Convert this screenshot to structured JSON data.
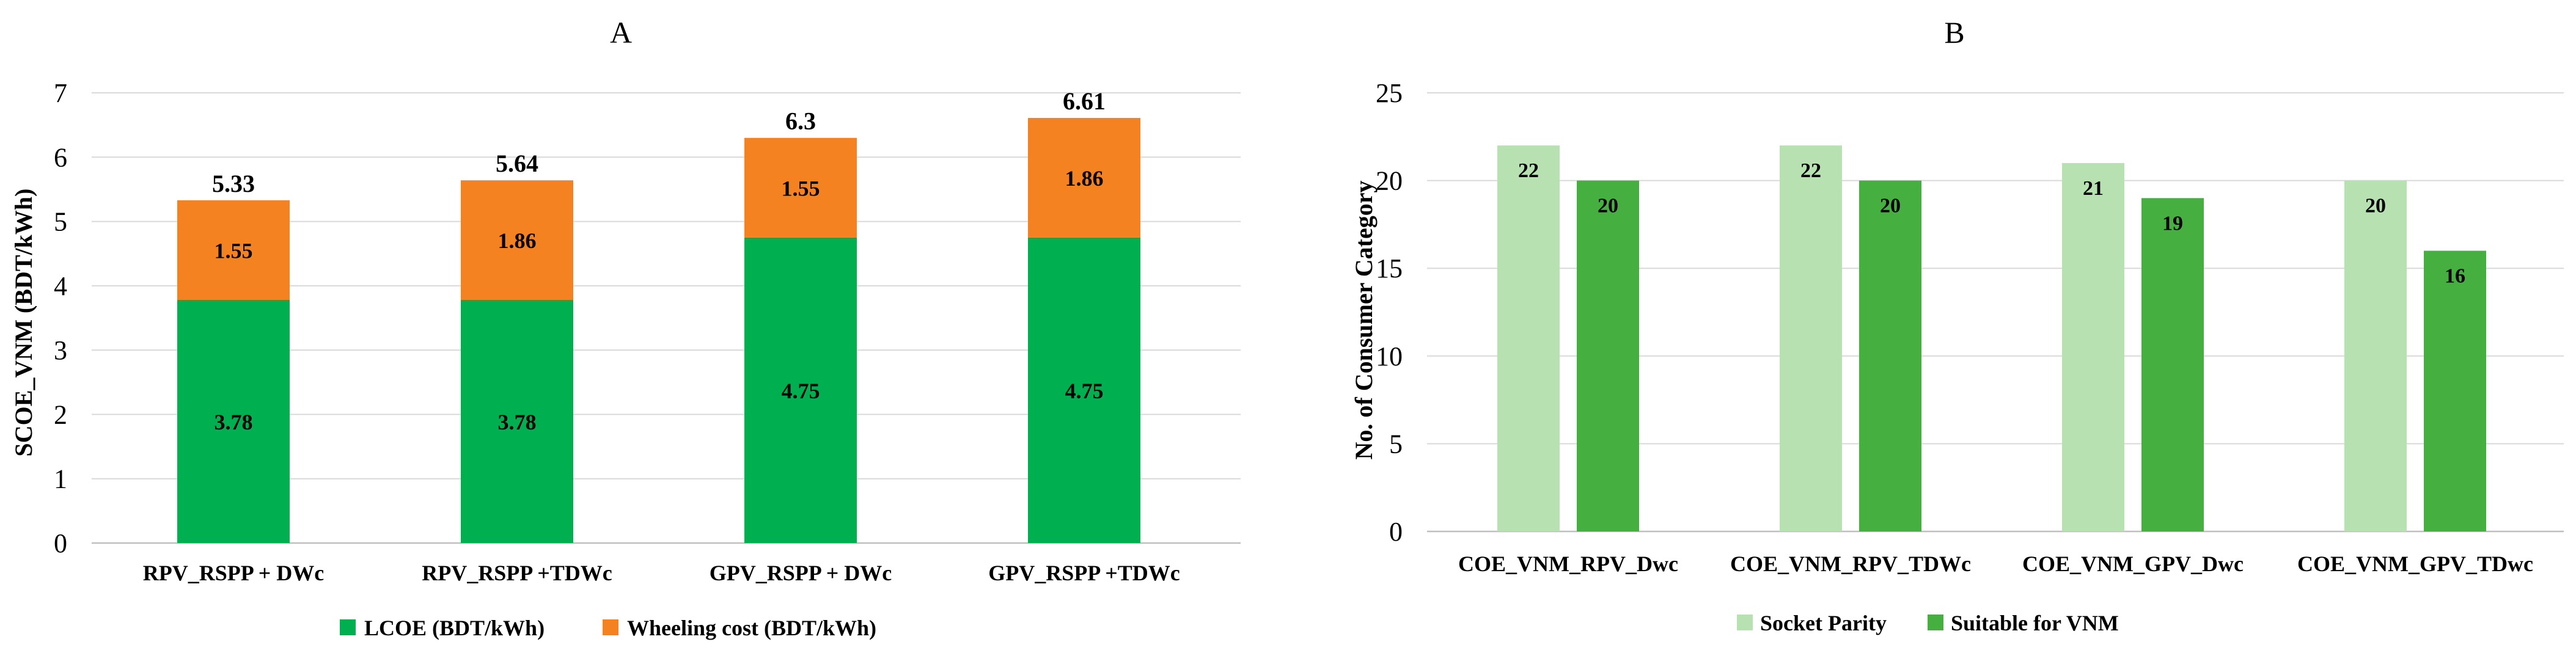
{
  "chart_data": [
    {
      "type": "bar",
      "stacked": true,
      "title": "A",
      "xlabel": "",
      "ylabel": "SCOE_VNM (BDT/kWh)",
      "ylim": [
        0,
        7
      ],
      "yticks": [
        "0",
        "1",
        "2",
        "3",
        "4",
        "5",
        "6",
        "7"
      ],
      "grid": true,
      "legend_position": "bottom",
      "categories": [
        "RPV_RSPP + DWc",
        "RPV_RSPP +TDWc",
        "GPV_RSPP + DWc",
        "GPV_RSPP +TDWc"
      ],
      "series": [
        {
          "name": "LCOE (BDT/kWh)",
          "color": "#00b050",
          "values": [
            3.78,
            3.78,
            4.75,
            4.75
          ],
          "labels": [
            "3.78",
            "3.78",
            "4.75",
            "4.75"
          ]
        },
        {
          "name": "Wheeling cost (BDT/kWh)",
          "color": "#f58220",
          "values": [
            1.55,
            1.86,
            1.55,
            1.86
          ],
          "labels": [
            "1.55",
            "1.86",
            "1.55",
            "1.86"
          ]
        }
      ],
      "totals": [
        5.33,
        5.64,
        6.3,
        6.61
      ],
      "total_labels": [
        "5.33",
        "5.64",
        "6.3",
        "6.61"
      ]
    },
    {
      "type": "bar",
      "stacked": false,
      "title": "B",
      "xlabel": "",
      "ylabel": "No. of Consumer Category",
      "ylim": [
        0,
        25
      ],
      "yticks": [
        "0",
        "5",
        "10",
        "15",
        "20",
        "25"
      ],
      "grid": true,
      "legend_position": "bottom",
      "categories": [
        "COE_VNM_RPV_Dwc",
        "COE_VNM_RPV_TDWc",
        "COE_VNM_GPV_Dwc",
        "COE_VNM_GPV_TDwc"
      ],
      "series": [
        {
          "name": "Socket Parity",
          "color": "#b7e1b0",
          "values": [
            22,
            22,
            21,
            20
          ],
          "labels": [
            "22",
            "22",
            "21",
            "20"
          ]
        },
        {
          "name": "Suitable for VNM",
          "color": "#45b03f",
          "values": [
            20,
            20,
            19,
            16
          ],
          "labels": [
            "20",
            "20",
            "19",
            "16"
          ]
        }
      ]
    }
  ]
}
